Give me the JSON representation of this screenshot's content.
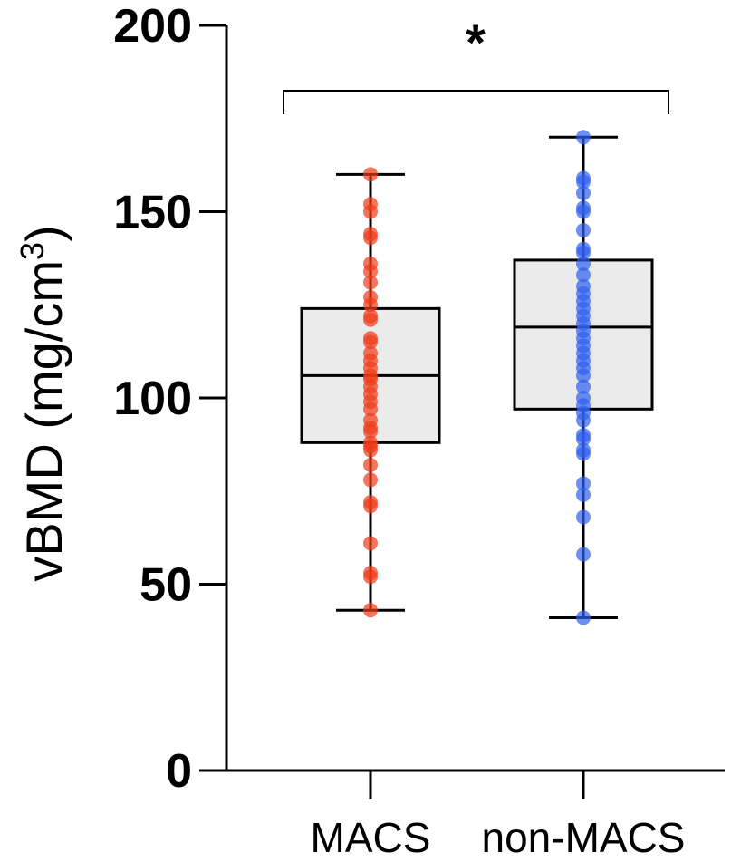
{
  "chart_data": {
    "type": "box",
    "ylabel_main": "vBMD (mg/cm",
    "ylabel_sup": "3",
    "ylabel_close": ")",
    "xlabel": "",
    "ylim": [
      0,
      200
    ],
    "yticks": [
      "0",
      "50",
      "100",
      "150",
      "200"
    ],
    "categories": [
      "MACS",
      "non-MACS"
    ],
    "significance": "*",
    "grid": false,
    "series": [
      {
        "category": "MACS",
        "color": "#f03a17",
        "min": 43,
        "q1": 88,
        "median": 106,
        "q3": 124,
        "max": 160,
        "points": [
          160,
          152,
          150,
          144,
          143,
          136,
          134,
          131,
          127,
          125,
          122,
          121,
          116,
          115,
          112,
          110,
          108,
          106,
          105,
          103,
          101,
          99,
          97,
          94,
          92,
          91,
          88,
          87,
          86,
          82,
          78,
          72,
          71,
          61,
          53,
          52,
          43
        ]
      },
      {
        "category": "non-MACS",
        "color": "#2f5ff0",
        "min": 41,
        "q1": 97,
        "median": 119,
        "q3": 137,
        "max": 170,
        "points": [
          170,
          159,
          158,
          155,
          151,
          150,
          145,
          140,
          139,
          136,
          133,
          130,
          128,
          126,
          124,
          122,
          120,
          118,
          116,
          114,
          112,
          110,
          108,
          106,
          103,
          100,
          98,
          96,
          94,
          90,
          89,
          86,
          85,
          77,
          74,
          68,
          58,
          41
        ]
      }
    ]
  }
}
